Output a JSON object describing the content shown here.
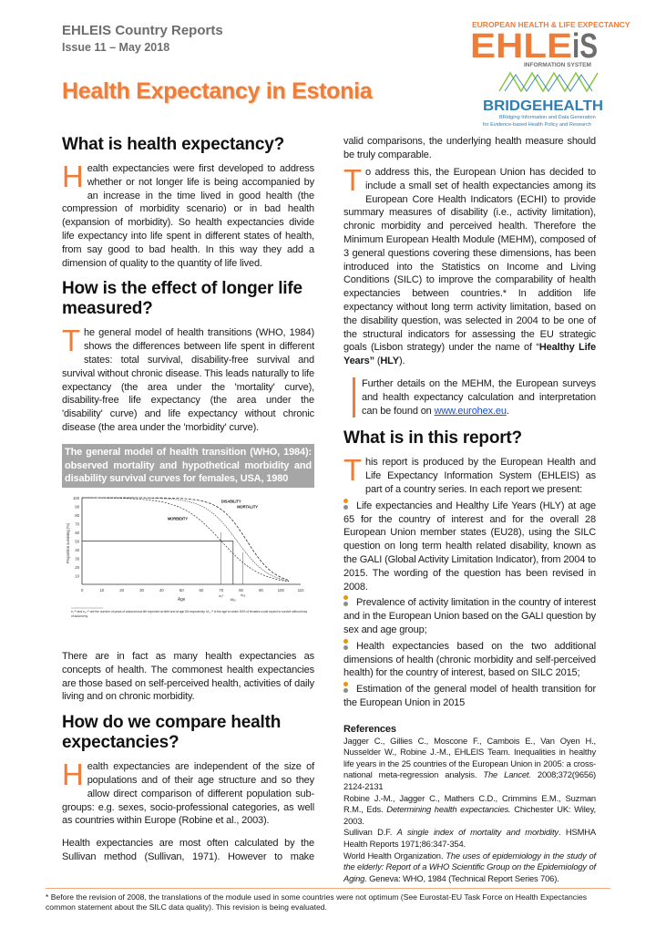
{
  "header": {
    "series": "EHLEIS Country Reports",
    "issue": "Issue 11 – May 2018",
    "title": "Health Expectancy in Estonia"
  },
  "logos": {
    "ehleis_top": "EUROPEAN HEALTH & LIFE EXPECTANCY",
    "ehleis_main": "EHLEiS",
    "ehleis_sub": "INFORMATION SYSTEM",
    "bridge_main": "BRIDGEHEALTH",
    "bridge_sub1": "BRidging Information and Data Generation",
    "bridge_sub2": "for Evidence-based Health Policy and Research"
  },
  "colors": {
    "accent": "#ef7d3a",
    "caption_bg": "#a6a6a6",
    "bullet_top": "#f39200",
    "bullet_bottom": "#8c8c8c",
    "link": "#1a4fd6"
  },
  "sections": {
    "s1": {
      "heading": "What is health expectancy?",
      "dropcap": "H",
      "p1": "ealth expectancies were first developed to address whether or not longer life is being accompanied by an increase in the time lived in good health (the compression of morbidity scenario) or in bad health (expansion of morbidity). So health expectancies divide life expectancy into life spent in different states of health, from say good to bad health. In this way they add a dimension of quality to the quantity of life lived."
    },
    "s2": {
      "heading": "How is the effect of longer life measured?",
      "dropcap": "T",
      "p1": "he general model of health transitions (WHO, 1984) shows the differences between life spent in different states: total survival, disability-free survival and survival without chronic disease. This leads naturally to life expectancy (the area under the 'mortality' curve), disability-free life expectancy (the area under the 'disability' curve) and life expectancy without chronic disease (the area under the 'morbidity' curve).",
      "caption": "The general model of health transition (WHO, 1984): observed mortality and hypothetical morbidity and disability survival curves for females, USA, 1980",
      "p2": "There are in fact as many health expectancies as concepts of health. The commonest health expectancies are those based on self-perceived health, activities of daily living and on chronic morbidity."
    },
    "s3": {
      "heading": "How do we compare health expectancies?",
      "dropcap": "H",
      "p1": "ealth expectancies are independent of the size of populations and of their age structure and so they allow direct comparison of different population sub-groups: e.g. sexes, socio-professional categories, as well as countries within Europe (Robine et al., 2003).",
      "p2": "Health expectancies are most often calculated by the Sullivan method (Sullivan, 1971). However to make valid comparisons, the underlying health measure should be truly comparable.",
      "dropcap2": "T",
      "p3_a": "o address this, the European Union has decided to include a small set of health expectancies among its European Core Health Indicators (ECHI) to provide summary measures of disability (i.e., activity limitation), chronic morbidity and perceived health. Therefore the Minimum European Health Module (MEHM), composed of 3 general questions covering these dimensions, has been introduced into the Statistics on Income and Living Conditions (SILC) to improve the comparability of health expectancies between countries.* In addition life expectancy without long term activity limitation, based on the disability question, was selected in 2004 to be one of the structural indicators for assessing the EU strategic goals (Lisbon strategy) under the name of “",
      "p3_bold1": "Healthy Life Years”",
      "p3_b": " (",
      "p3_bold2": "HLY",
      "p3_c": ").",
      "note": "Further details on the MEHM, the European surveys and health expectancy calculation and interpretation can be found on ",
      "note_link": "www.eurohex.eu",
      "note_end": "."
    },
    "s4": {
      "heading": "What is in this report?",
      "dropcap": "T",
      "p1": "his report is produced by the European Health and Life Expectancy Information System (EHLEIS) as part of a country series. In each report we present:",
      "bullets": [
        "Life expectancies and Healthy Life Years (HLY) at age 65 for the country of interest and for the overall 28 European Union member states (EU28), using the SILC question on long term health related disability, known as the GALI (Global Activity Limitation Indicator), from 2004 to 2015. The wording of the question has been revised in 2008.",
        "Prevalence of activity limitation in the country of interest and in the European Union based on the GALI question by sex and age group;",
        "Health expectancies based on the two additional dimensions of health (chronic morbidity and self-perceived health) for the country of interest, based on SILC 2015;",
        "Estimation of the general model of health transition for the European Union in 2015"
      ]
    }
  },
  "figure": {
    "ylabel": "Proportion surviving (%)",
    "xlabel": "Age",
    "yticks": [
      "100",
      "90",
      "80",
      "70",
      "60",
      "50",
      "40",
      "30",
      "20",
      "10"
    ],
    "xticks": [
      "0",
      "10",
      "20",
      "30",
      "40",
      "50",
      "60",
      "70",
      "80",
      "90",
      "100",
      "110"
    ],
    "curve_labels": [
      "DISABILITY",
      "MORTALITY",
      "MORBIDITY"
    ],
    "marks": [
      "e₀*",
      "M₅₀",
      "e₆₅"
    ],
    "note": "e₀** and e₆₅** are the number of years of autonomous life expected at birth and at age 65 respectively. M₅₀** is the age to which 50% of females could expect to survive without loss of autonomy."
  },
  "references": {
    "heading": "References",
    "items": [
      {
        "a": "Jagger C., Gillies C., Moscone F., Cambois E., Van Oyen H., Nusselder W., Robine J.-M., EHLEIS Team. Inequalities in healthy life years in the 25 countries of the European Union in 2005: a cross-national meta-regression analysis. ",
        "i": "The Lancet.",
        "b": " 2008;372(9656) 2124-2131"
      },
      {
        "a": "Robine J.-M., Jagger C., Mathers C.D., Crimmins E.M., Suzman R.M., Eds. ",
        "i": "Determining health expectancies.",
        "b": " Chichester UK: Wiley, 2003."
      },
      {
        "a": "Sullivan D.F. ",
        "i": "A single index of mortality and morbidity",
        "b": ". HSMHA Health Reports 1971;86:347-354."
      },
      {
        "a": "World Health Organization. ",
        "i": "The uses of epidemiology in the study of the elderly: Report of a WHO Scientific Group on the Epidemiology of Aging.",
        "b": " Geneva: WHO, 1984 (Technical Report Series 706)."
      }
    ]
  },
  "footnote": "* Before the revision of 2008, the translations of the module used in some countries were not optimum (See Eurostat-EU Task Force on Health Expectancies common statement about the SILC data quality). This revision is being evaluated."
}
